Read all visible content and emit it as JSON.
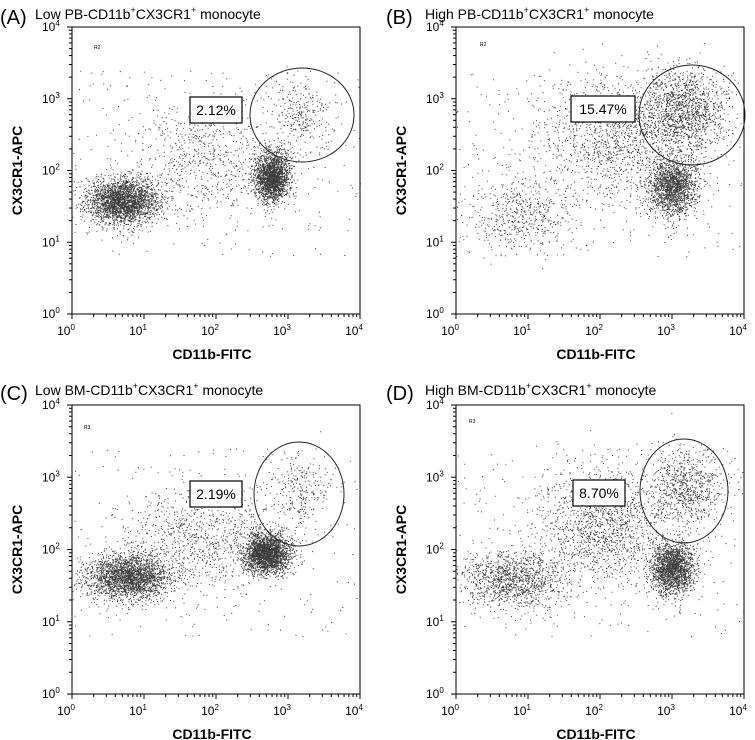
{
  "figure": {
    "panels": [
      {
        "letter": "(A)",
        "title_main": "Low PB-CD11b",
        "title_mid": "CX3CR1",
        "title_end": " monocyte",
        "sup": "+",
        "gate_label": "R2",
        "percent": "2.12%"
      },
      {
        "letter": "(B)",
        "title_main": "High PB-CD11b",
        "title_mid": "CX3CR1",
        "title_end": " monocyte",
        "sup": "+",
        "gate_label": "R2",
        "percent": "15.47%"
      },
      {
        "letter": "(C)",
        "title_main": "Low BM-CD11b",
        "title_mid": "CX3CR1",
        "title_end": " monocyte",
        "sup": "+",
        "gate_label": "R3",
        "percent": "2.19%"
      },
      {
        "letter": "(D)",
        "title_main": "High BM-CD11b",
        "title_mid": "CX3CR1",
        "title_end": " monocyte",
        "sup": "+",
        "gate_label": "R3",
        "percent": "8.70%"
      }
    ]
  },
  "chart_data": [
    {
      "type": "scatter",
      "title": "Low PB-CD11b+CX3CR1+ monocyte",
      "xlabel": "CD11b-FITC",
      "ylabel": "CX3CR1-APC",
      "xscale": "log",
      "yscale": "log",
      "xlim": [
        1,
        10000
      ],
      "ylim": [
        1,
        10000
      ],
      "tick_base": "10",
      "tick_exponents": [
        "0",
        "1",
        "2",
        "3",
        "4"
      ],
      "gate": {
        "label": "R2",
        "center": [
          1500,
          600
        ],
        "percent": "2.12%"
      },
      "populations": [
        {
          "center": [
            5,
            38
          ],
          "spread": [
            0.25,
            0.16
          ],
          "n": 2600
        },
        {
          "center": [
            600,
            80
          ],
          "spread": [
            0.12,
            0.17
          ],
          "n": 2000
        },
        {
          "center": [
            80,
            150
          ],
          "spread": [
            0.6,
            0.4
          ],
          "n": 700
        },
        {
          "center": [
            1500,
            600
          ],
          "spread": [
            0.22,
            0.25
          ],
          "n": 250
        }
      ]
    },
    {
      "type": "scatter",
      "title": "High PB-CD11b+CX3CR1+ monocyte",
      "xlabel": "CD11b-FITC",
      "ylabel": "CX3CR1-APC",
      "xscale": "log",
      "yscale": "log",
      "xlim": [
        1,
        10000
      ],
      "ylim": [
        1,
        10000
      ],
      "tick_base": "10",
      "tick_exponents": [
        "0",
        "1",
        "2",
        "3",
        "4"
      ],
      "gate": {
        "label": "R2",
        "center": [
          1500,
          700
        ],
        "percent": "15.47%"
      },
      "populations": [
        {
          "center": [
            8,
            25
          ],
          "spread": [
            0.35,
            0.25
          ],
          "n": 500
        },
        {
          "center": [
            1000,
            60
          ],
          "spread": [
            0.17,
            0.2
          ],
          "n": 1700
        },
        {
          "center": [
            150,
            300
          ],
          "spread": [
            0.55,
            0.45
          ],
          "n": 1400
        },
        {
          "center": [
            1500,
            700
          ],
          "spread": [
            0.28,
            0.3
          ],
          "n": 1300
        }
      ]
    },
    {
      "type": "scatter",
      "title": "Low BM-CD11b+CX3CR1+ monocyte",
      "xlabel": "CD11b-FITC",
      "ylabel": "CX3CR1-APC",
      "xscale": "log",
      "yscale": "log",
      "xlim": [
        1,
        10000
      ],
      "ylim": [
        1,
        10000
      ],
      "tick_base": "10",
      "tick_exponents": [
        "0",
        "1",
        "2",
        "3",
        "4"
      ],
      "gate": {
        "label": "R3",
        "center": [
          1500,
          700
        ],
        "percent": "2.19%"
      },
      "populations": [
        {
          "center": [
            6,
            42
          ],
          "spread": [
            0.3,
            0.16
          ],
          "n": 2400
        },
        {
          "center": [
            500,
            90
          ],
          "spread": [
            0.16,
            0.14
          ],
          "n": 2300
        },
        {
          "center": [
            70,
            150
          ],
          "spread": [
            0.55,
            0.35
          ],
          "n": 900
        },
        {
          "center": [
            1500,
            700
          ],
          "spread": [
            0.22,
            0.25
          ],
          "n": 230
        }
      ]
    },
    {
      "type": "scatter",
      "title": "High BM-CD11b+CX3CR1+ monocyte",
      "xlabel": "CD11b-FITC",
      "ylabel": "CX3CR1-APC",
      "xscale": "log",
      "yscale": "log",
      "xlim": [
        1,
        10000
      ],
      "ylim": [
        1,
        10000
      ],
      "tick_base": "10",
      "tick_exponents": [
        "0",
        "1",
        "2",
        "3",
        "4"
      ],
      "gate": {
        "label": "R3",
        "center": [
          1500,
          700
        ],
        "percent": "8.70%"
      },
      "populations": [
        {
          "center": [
            6,
            40
          ],
          "spread": [
            0.35,
            0.2
          ],
          "n": 1200
        },
        {
          "center": [
            1000,
            55
          ],
          "spread": [
            0.15,
            0.18
          ],
          "n": 1900
        },
        {
          "center": [
            100,
            220
          ],
          "spread": [
            0.45,
            0.4
          ],
          "n": 1400
        },
        {
          "center": [
            1500,
            700
          ],
          "spread": [
            0.28,
            0.28
          ],
          "n": 800
        }
      ]
    }
  ]
}
